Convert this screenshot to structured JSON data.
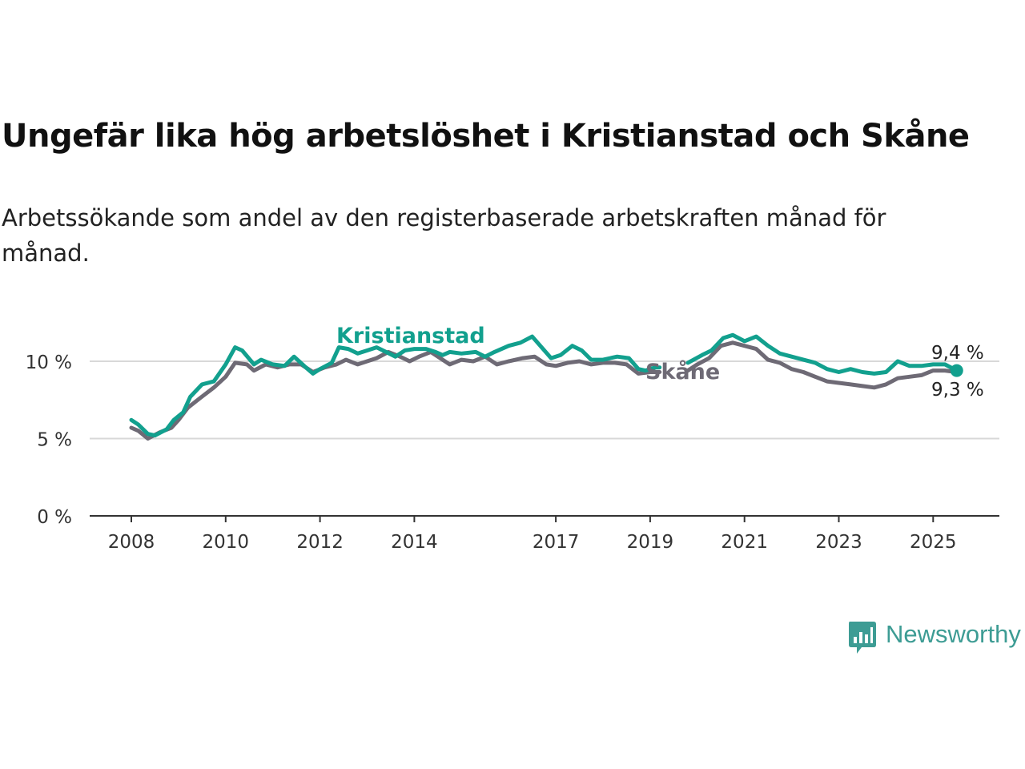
{
  "header": {
    "title": "Ungefär lika hög arbetslöshet i Kristianstad och Skåne",
    "subtitle": "Arbetssökande som andel av den registerbaserade arbetskraften månad för månad."
  },
  "brand": {
    "name": "Newsworthy",
    "color": "#3d9c94"
  },
  "chart_data": {
    "type": "line",
    "x_ticks": [
      "2008",
      "2010",
      "2012",
      "2014",
      "2017",
      "2019",
      "2021",
      "2023",
      "2025"
    ],
    "y_ticks": [
      "0 %",
      "5 %",
      "10 %"
    ],
    "ylim": [
      0,
      12
    ],
    "xlim": [
      2007.2,
      2026.3
    ],
    "grid": true,
    "series": [
      {
        "name": "Kristianstad",
        "color": "#12a08e",
        "label_position": "above-line",
        "end_label": "9,4 %",
        "points": [
          [
            2008.0,
            6.2
          ],
          [
            2008.15,
            5.9
          ],
          [
            2008.35,
            5.3
          ],
          [
            2008.5,
            5.2
          ],
          [
            2008.75,
            5.6
          ],
          [
            2008.9,
            6.2
          ],
          [
            2009.1,
            6.7
          ],
          [
            2009.25,
            7.7
          ],
          [
            2009.5,
            8.5
          ],
          [
            2009.75,
            8.7
          ],
          [
            2010.0,
            9.8
          ],
          [
            2010.2,
            10.9
          ],
          [
            2010.35,
            10.7
          ],
          [
            2010.6,
            9.8
          ],
          [
            2010.75,
            10.1
          ],
          [
            2011.0,
            9.8
          ],
          [
            2011.25,
            9.7
          ],
          [
            2011.45,
            10.3
          ],
          [
            2011.7,
            9.6
          ],
          [
            2011.85,
            9.2
          ],
          [
            2012.0,
            9.5
          ],
          [
            2012.25,
            9.9
          ],
          [
            2012.4,
            10.9
          ],
          [
            2012.6,
            10.8
          ],
          [
            2012.8,
            10.5
          ],
          [
            2013.0,
            10.7
          ],
          [
            2013.2,
            10.9
          ],
          [
            2013.4,
            10.6
          ],
          [
            2013.6,
            10.3
          ],
          [
            2013.8,
            10.7
          ],
          [
            2014.0,
            10.8
          ],
          [
            2014.25,
            10.8
          ],
          [
            2014.45,
            10.6
          ],
          [
            2014.6,
            10.4
          ],
          [
            2014.75,
            10.6
          ],
          [
            2015.0,
            10.5
          ],
          [
            2015.3,
            10.6
          ],
          [
            2015.5,
            10.3
          ],
          [
            2015.7,
            10.6
          ],
          [
            2016.0,
            11.0
          ],
          [
            2016.25,
            11.2
          ],
          [
            2016.5,
            11.6
          ],
          [
            2016.7,
            10.9
          ],
          [
            2016.9,
            10.2
          ],
          [
            2017.1,
            10.4
          ],
          [
            2017.35,
            11.0
          ],
          [
            2017.55,
            10.7
          ],
          [
            2017.75,
            10.1
          ],
          [
            2018.0,
            10.1
          ],
          [
            2018.3,
            10.3
          ],
          [
            2018.55,
            10.2
          ],
          [
            2018.75,
            9.5
          ],
          [
            2018.9,
            9.4
          ],
          [
            2019.1,
            9.6
          ],
          [
            2019.2,
            9.6
          ],
          [
            2019.8,
            9.9
          ],
          [
            2020.1,
            10.4
          ],
          [
            2020.3,
            10.7
          ],
          [
            2020.55,
            11.5
          ],
          [
            2020.75,
            11.7
          ],
          [
            2021.0,
            11.3
          ],
          [
            2021.25,
            11.6
          ],
          [
            2021.5,
            11.0
          ],
          [
            2021.75,
            10.5
          ],
          [
            2022.0,
            10.3
          ],
          [
            2022.25,
            10.1
          ],
          [
            2022.5,
            9.9
          ],
          [
            2022.75,
            9.5
          ],
          [
            2023.0,
            9.3
          ],
          [
            2023.25,
            9.5
          ],
          [
            2023.5,
            9.3
          ],
          [
            2023.75,
            9.2
          ],
          [
            2024.0,
            9.3
          ],
          [
            2024.25,
            10.0
          ],
          [
            2024.5,
            9.7
          ],
          [
            2024.75,
            9.7
          ],
          [
            2025.0,
            9.8
          ],
          [
            2025.25,
            9.8
          ],
          [
            2025.5,
            9.4
          ]
        ]
      },
      {
        "name": "Skåne",
        "color": "#6e6a75",
        "label_position": "right-of-line",
        "end_label": "9,3 %",
        "points": [
          [
            2008.0,
            5.7
          ],
          [
            2008.15,
            5.5
          ],
          [
            2008.35,
            5.0
          ],
          [
            2008.6,
            5.4
          ],
          [
            2008.85,
            5.7
          ],
          [
            2009.0,
            6.2
          ],
          [
            2009.2,
            7.0
          ],
          [
            2009.45,
            7.6
          ],
          [
            2009.75,
            8.3
          ],
          [
            2010.0,
            9.0
          ],
          [
            2010.2,
            9.9
          ],
          [
            2010.45,
            9.8
          ],
          [
            2010.6,
            9.4
          ],
          [
            2010.85,
            9.8
          ],
          [
            2011.1,
            9.6
          ],
          [
            2011.35,
            9.8
          ],
          [
            2011.6,
            9.8
          ],
          [
            2011.85,
            9.3
          ],
          [
            2012.1,
            9.6
          ],
          [
            2012.35,
            9.8
          ],
          [
            2012.55,
            10.1
          ],
          [
            2012.8,
            9.8
          ],
          [
            2013.0,
            10.0
          ],
          [
            2013.2,
            10.2
          ],
          [
            2013.45,
            10.6
          ],
          [
            2013.7,
            10.3
          ],
          [
            2013.9,
            10.0
          ],
          [
            2014.1,
            10.3
          ],
          [
            2014.35,
            10.6
          ],
          [
            2014.55,
            10.2
          ],
          [
            2014.75,
            9.8
          ],
          [
            2015.0,
            10.1
          ],
          [
            2015.25,
            10.0
          ],
          [
            2015.5,
            10.3
          ],
          [
            2015.75,
            9.8
          ],
          [
            2016.0,
            10.0
          ],
          [
            2016.3,
            10.2
          ],
          [
            2016.55,
            10.3
          ],
          [
            2016.8,
            9.8
          ],
          [
            2017.0,
            9.7
          ],
          [
            2017.25,
            9.9
          ],
          [
            2017.5,
            10.0
          ],
          [
            2017.75,
            9.8
          ],
          [
            2018.0,
            9.9
          ],
          [
            2018.25,
            9.9
          ],
          [
            2018.5,
            9.8
          ],
          [
            2018.75,
            9.2
          ],
          [
            2019.0,
            9.3
          ],
          [
            2019.2,
            9.3
          ],
          [
            2019.8,
            9.4
          ],
          [
            2020.0,
            9.8
          ],
          [
            2020.25,
            10.2
          ],
          [
            2020.5,
            11.0
          ],
          [
            2020.75,
            11.2
          ],
          [
            2021.0,
            11.0
          ],
          [
            2021.25,
            10.8
          ],
          [
            2021.5,
            10.1
          ],
          [
            2021.75,
            9.9
          ],
          [
            2022.0,
            9.5
          ],
          [
            2022.25,
            9.3
          ],
          [
            2022.5,
            9.0
          ],
          [
            2022.75,
            8.7
          ],
          [
            2023.0,
            8.6
          ],
          [
            2023.25,
            8.5
          ],
          [
            2023.5,
            8.4
          ],
          [
            2023.75,
            8.3
          ],
          [
            2024.0,
            8.5
          ],
          [
            2024.25,
            8.9
          ],
          [
            2024.5,
            9.0
          ],
          [
            2024.75,
            9.1
          ],
          [
            2025.0,
            9.4
          ],
          [
            2025.25,
            9.4
          ],
          [
            2025.5,
            9.3
          ]
        ]
      }
    ]
  }
}
